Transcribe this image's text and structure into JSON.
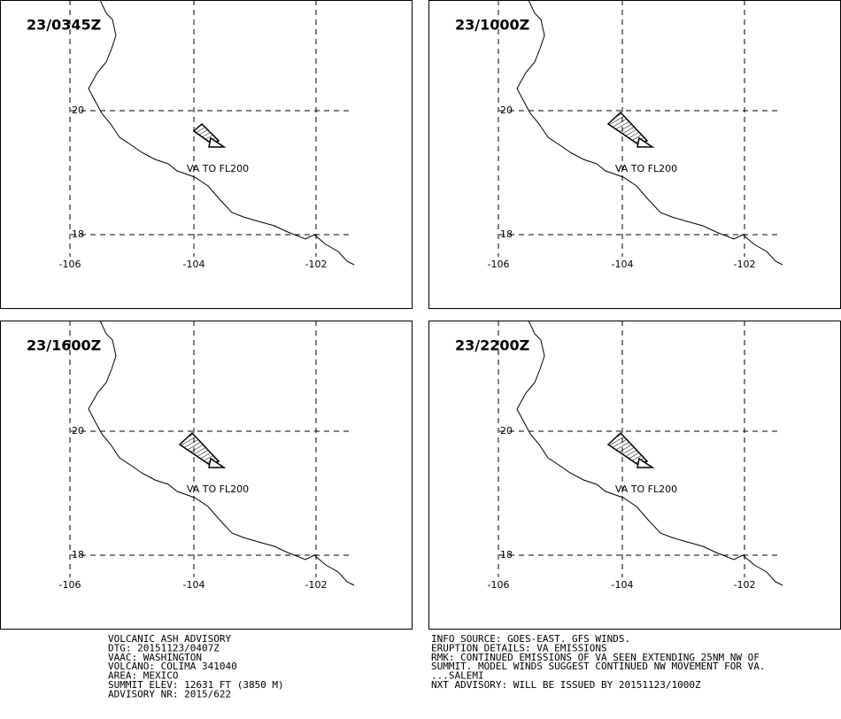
{
  "panels": [
    {
      "time": "23/0345Z",
      "plume_label": "VA TO FL200",
      "plume": "small"
    },
    {
      "time": "23/1000Z",
      "plume_label": "VA TO FL200",
      "plume": "large"
    },
    {
      "time": "23/1600Z",
      "plume_label": "VA TO FL200",
      "plume": "large"
    },
    {
      "time": "23/2200Z",
      "plume_label": "VA TO FL200",
      "plume": "large"
    }
  ],
  "grid": {
    "lat_labels": [
      "20",
      "18"
    ],
    "lon_labels": [
      "-106",
      "-104",
      "-102"
    ]
  },
  "advisory_left": [
    "VOLCANIC ASH ADVISORY",
    "DTG: 20151123/0407Z",
    "VAAC: WASHINGTON",
    "VOLCANO: COLIMA 341040",
    "AREA: MEXICO",
    "SUMMIT ELEV: 12631 FT (3850 M)",
    "ADVISORY NR: 2015/622"
  ],
  "advisory_right": [
    "INFO SOURCE: GOES-EAST. GFS WINDS.",
    "ERUPTION DETAILS: VA EMISSIONS",
    "RMK: CONTINUED EMISSIONS OF VA SEEN EXTENDING 25NM NW OF",
    "SUMMIT. MODEL WINDS SUGGEST CONTINUED NW MOVEMENT FOR VA.",
    "...SALEMI",
    "NXT ADVISORY: WILL BE ISSUED BY 20151123/1000Z"
  ]
}
